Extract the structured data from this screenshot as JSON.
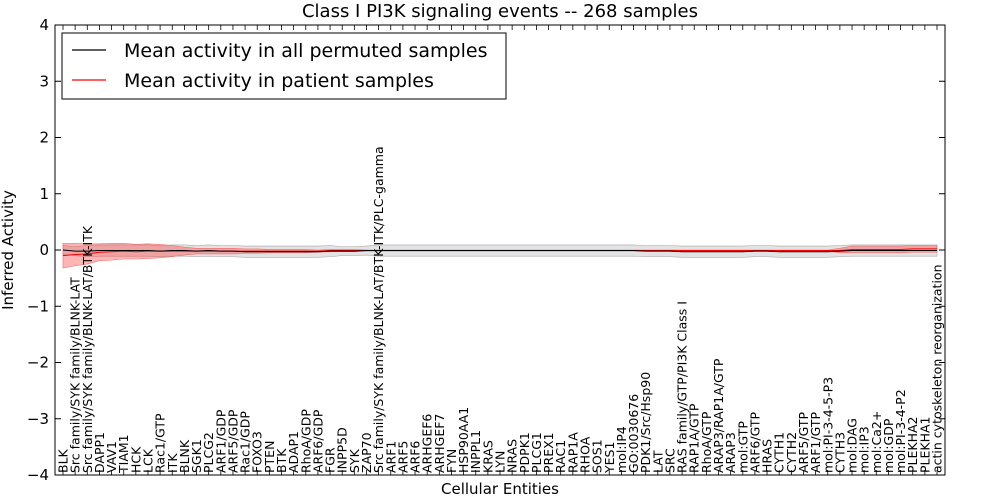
{
  "chart_data": {
    "type": "line",
    "title": "Class I PI3K signaling events -- 268 samples",
    "xlabel": "Cellular Entities",
    "ylabel": "Inferred Activity",
    "ylim": [
      -4,
      4
    ],
    "yticks": [
      "−4",
      "−3",
      "−2",
      "−1",
      "0",
      "1",
      "2",
      "3",
      "4"
    ],
    "categories": [
      "BLK",
      "Src family/SYK family/BLNK-LAT",
      "Src family/SYK family/BLNK-LAT/BTK-ITK",
      "DAPP1",
      "VAV1",
      "TIAM1",
      "HCK",
      "LCK",
      "Rac1/GTP",
      "ITK",
      "BLNK",
      "SGK1",
      "PLCG2",
      "ARF1/GDP",
      "ARF5/GDP",
      "Rac1/GDP",
      "FOXO3",
      "PTEN",
      "BTK",
      "ADAP1",
      "RhoA/GDP",
      "ARF6/GDP",
      "FGR",
      "INPP5D",
      "SYK",
      "ZAP70",
      "Src family/SYK family/BLNK-LAT/BTK-ITK/PLC-gamma",
      "ARF1",
      "ARF5",
      "ARF6",
      "ARHGEF6",
      "ARHGEF7",
      "FYN",
      "HSP90AA1",
      "INPPL1",
      "KRAS",
      "LYN",
      "NRAS",
      "PDPK1",
      "PLCG1",
      "PREX1",
      "RAC1",
      "RAP1A",
      "RHOA",
      "SOS1",
      "YES1",
      "mol:IP4",
      "GO:0030676",
      "PDK1/Src/Hsp90",
      "LAT",
      "SRC",
      "RAS family/GTP/PI3K Class I",
      "RAP1A/GTP",
      "RhoA/GTP",
      "ARAP3/RAP1A/GTP",
      "ARAP3",
      "mol:GTP",
      "ARF6/GTP",
      "HRAS",
      "CYTH1",
      "CYTH2",
      "ARF5/GTP",
      "ARF1/GTP",
      "mol:PI-3-4-5-P3",
      "CYTH3",
      "mol:DAG",
      "mol:IP3",
      "mol:Ca2+",
      "mol:GDP",
      "mol:PI-3-4-P2",
      "PLEKHA2",
      "PLEKHA1",
      "actin cytoskeleton reorganization"
    ],
    "series": [
      {
        "name": "Mean activity in all permuted samples",
        "color": "#000000",
        "values": [
          0.0,
          -0.02,
          -0.02,
          -0.01,
          -0.01,
          -0.01,
          -0.01,
          -0.01,
          -0.02,
          -0.01,
          -0.01,
          -0.02,
          -0.01,
          -0.02,
          -0.02,
          -0.03,
          -0.03,
          -0.03,
          -0.03,
          -0.03,
          -0.03,
          -0.03,
          -0.02,
          -0.02,
          -0.02,
          -0.01,
          -0.01,
          -0.01,
          -0.01,
          -0.01,
          -0.01,
          -0.01,
          -0.01,
          -0.01,
          -0.01,
          -0.01,
          -0.01,
          -0.01,
          -0.01,
          -0.01,
          -0.01,
          -0.01,
          -0.01,
          -0.01,
          -0.01,
          -0.01,
          -0.01,
          -0.01,
          -0.02,
          -0.02,
          -0.02,
          -0.03,
          -0.03,
          -0.03,
          -0.03,
          -0.03,
          -0.03,
          -0.02,
          -0.02,
          -0.03,
          -0.03,
          -0.03,
          -0.03,
          -0.03,
          -0.02,
          -0.01,
          -0.01,
          -0.01,
          -0.01,
          -0.01,
          -0.01,
          -0.01,
          -0.01
        ],
        "band": [
          0.08,
          0.08,
          0.1,
          0.1,
          0.1,
          0.1,
          0.1,
          0.1,
          0.1,
          0.1,
          0.1,
          0.1,
          0.1,
          0.1,
          0.1,
          0.1,
          0.1,
          0.1,
          0.1,
          0.1,
          0.1,
          0.1,
          0.1,
          0.08,
          0.08,
          0.08,
          0.1,
          0.1,
          0.1,
          0.1,
          0.1,
          0.1,
          0.1,
          0.1,
          0.1,
          0.1,
          0.1,
          0.1,
          0.1,
          0.1,
          0.1,
          0.1,
          0.1,
          0.1,
          0.1,
          0.1,
          0.1,
          0.1,
          0.1,
          0.1,
          0.1,
          0.1,
          0.1,
          0.1,
          0.1,
          0.1,
          0.1,
          0.1,
          0.1,
          0.1,
          0.1,
          0.1,
          0.1,
          0.1,
          0.1,
          0.1,
          0.1,
          0.1,
          0.1,
          0.1,
          0.1,
          0.1,
          0.1
        ]
      },
      {
        "name": "Mean activity in patient samples",
        "color": "#ff0000",
        "values": [
          -0.1,
          -0.08,
          -0.07,
          -0.04,
          -0.03,
          -0.02,
          -0.03,
          -0.02,
          -0.02,
          -0.02,
          -0.02,
          -0.02,
          -0.02,
          -0.02,
          -0.02,
          -0.02,
          -0.02,
          -0.02,
          -0.02,
          -0.02,
          -0.02,
          -0.02,
          -0.01,
          -0.01,
          -0.01,
          -0.01,
          -0.01,
          -0.01,
          -0.01,
          -0.01,
          -0.01,
          -0.01,
          -0.01,
          -0.01,
          -0.01,
          -0.01,
          -0.01,
          -0.01,
          -0.01,
          -0.01,
          -0.01,
          -0.01,
          -0.01,
          -0.01,
          -0.01,
          -0.01,
          -0.01,
          -0.01,
          -0.01,
          -0.01,
          -0.01,
          -0.01,
          -0.01,
          -0.01,
          -0.01,
          -0.01,
          -0.01,
          -0.01,
          -0.01,
          -0.01,
          -0.01,
          -0.01,
          -0.01,
          -0.01,
          -0.01,
          0.01,
          0.01,
          0.01,
          0.01,
          0.01,
          0.02,
          0.02,
          0.02
        ],
        "band": [
          0.22,
          0.2,
          0.18,
          0.15,
          0.15,
          0.14,
          0.13,
          0.13,
          0.12,
          0.1,
          0.07,
          0.05,
          0.05,
          0.05,
          0.05,
          0.04,
          0.04,
          0.03,
          0.03,
          0.03,
          0.03,
          0.02,
          0.02,
          0.02,
          0.02,
          0.01,
          0.01,
          0.01,
          0.01,
          0.01,
          0.01,
          0.01,
          0.01,
          0.01,
          0.01,
          0.01,
          0.01,
          0.01,
          0.01,
          0.01,
          0.01,
          0.01,
          0.01,
          0.01,
          0.01,
          0.01,
          0.01,
          0.01,
          0.01,
          0.01,
          0.01,
          0.01,
          0.01,
          0.01,
          0.01,
          0.01,
          0.01,
          0.01,
          0.01,
          0.01,
          0.01,
          0.01,
          0.01,
          0.01,
          0.04,
          0.06,
          0.06,
          0.06,
          0.06,
          0.06,
          0.06,
          0.06,
          0.06
        ]
      }
    ],
    "legend_position": "top-left",
    "grid": false
  }
}
